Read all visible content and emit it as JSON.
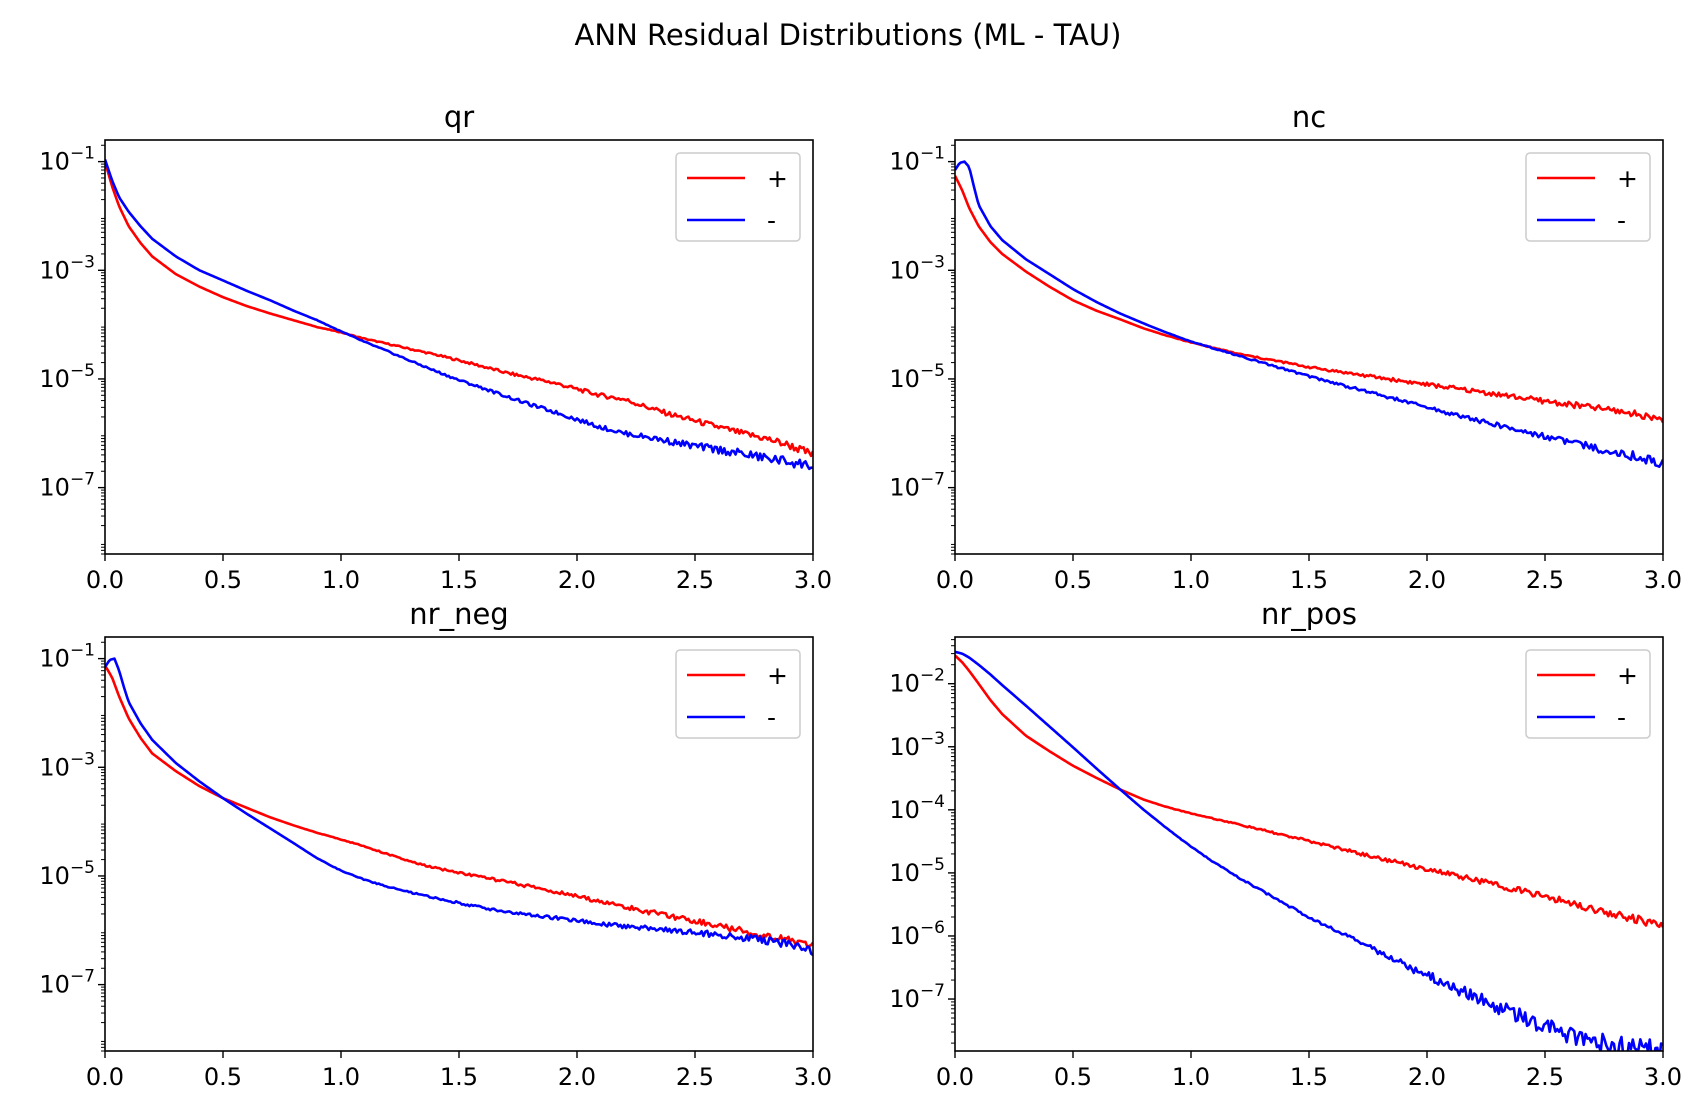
{
  "figure": {
    "suptitle": "ANN Residual Distributions (ML - TAU)"
  },
  "chart_data": [
    {
      "type": "line",
      "title": "qr",
      "xlabel": "",
      "ylabel": "",
      "xlim": [
        0,
        3
      ],
      "ylim": [
        6e-09,
        0.25
      ],
      "yscale": "log",
      "xticks": [
        "0.0",
        "0.5",
        "1.0",
        "1.5",
        "2.0",
        "2.5",
        "3.0"
      ],
      "yticks": [
        {
          "value": 0.1,
          "base": "10",
          "exp": "−1"
        },
        {
          "value": 0.001,
          "base": "10",
          "exp": "−3"
        },
        {
          "value": 1e-05,
          "base": "10",
          "exp": "−5"
        },
        {
          "value": 1e-07,
          "base": "10",
          "exp": "−7"
        }
      ],
      "legend_position": "top-right",
      "series": [
        {
          "name": "+",
          "color": "#ff0000",
          "x": [
            0,
            0.03,
            0.06,
            0.1,
            0.15,
            0.2,
            0.3,
            0.4,
            0.5,
            0.6,
            0.7,
            0.8,
            0.9,
            1.0,
            1.1,
            1.2,
            1.3,
            1.4,
            1.5,
            1.6,
            1.7,
            1.8,
            1.9,
            2.0,
            2.1,
            2.2,
            2.3,
            2.4,
            2.5,
            2.6,
            2.7,
            2.8,
            2.9,
            3.0
          ],
          "y": [
            0.1,
            0.035,
            0.015,
            0.0065,
            0.0032,
            0.0018,
            0.00085,
            0.0005,
            0.00032,
            0.00022,
            0.00016,
            0.00012,
            9e-05,
            7.2e-05,
            5.5e-05,
            4.4e-05,
            3.5e-05,
            2.8e-05,
            2.2e-05,
            1.7e-05,
            1.3e-05,
            1.05e-05,
            8.5e-06,
            6.5e-06,
            5e-06,
            4.2e-06,
            3e-06,
            2.2e-06,
            1.7e-06,
            1.3e-06,
            1e-06,
            8e-07,
            6e-07,
            4e-07
          ]
        },
        {
          "name": "-",
          "color": "#0000ff",
          "x": [
            0,
            0.03,
            0.06,
            0.1,
            0.15,
            0.2,
            0.3,
            0.4,
            0.5,
            0.6,
            0.7,
            0.8,
            0.9,
            1.0,
            1.1,
            1.2,
            1.3,
            1.4,
            1.5,
            1.6,
            1.7,
            1.8,
            1.9,
            2.0,
            2.1,
            2.2,
            2.3,
            2.4,
            2.5,
            2.6,
            2.7,
            2.8,
            2.9,
            3.0
          ],
          "y": [
            0.11,
            0.045,
            0.022,
            0.012,
            0.0065,
            0.0038,
            0.0018,
            0.001,
            0.00065,
            0.00042,
            0.00028,
            0.00018,
            0.00012,
            7.5e-05,
            4.8e-05,
            3.2e-05,
            2.1e-05,
            1.4e-05,
            9.5e-06,
            6.8e-06,
            4.8e-06,
            3.4e-06,
            2.5e-06,
            1.8e-06,
            1.3e-06,
            1e-06,
            8.5e-07,
            7e-07,
            5.8e-07,
            5e-07,
            4.2e-07,
            3.5e-07,
            3e-07,
            2.5e-07
          ]
        }
      ]
    },
    {
      "type": "line",
      "title": "nc",
      "xlabel": "",
      "ylabel": "",
      "xlim": [
        0,
        3
      ],
      "ylim": [
        6e-09,
        0.25
      ],
      "yscale": "log",
      "xticks": [
        "0.0",
        "0.5",
        "1.0",
        "1.5",
        "2.0",
        "2.5",
        "3.0"
      ],
      "yticks": [
        {
          "value": 0.1,
          "base": "10",
          "exp": "−1"
        },
        {
          "value": 0.001,
          "base": "10",
          "exp": "−3"
        },
        {
          "value": 1e-05,
          "base": "10",
          "exp": "−5"
        },
        {
          "value": 1e-07,
          "base": "10",
          "exp": "−7"
        }
      ],
      "legend_position": "top-right",
      "series": [
        {
          "name": "+",
          "color": "#ff0000",
          "x": [
            0,
            0.03,
            0.06,
            0.1,
            0.15,
            0.2,
            0.3,
            0.4,
            0.5,
            0.6,
            0.7,
            0.8,
            0.9,
            1.0,
            1.1,
            1.2,
            1.3,
            1.4,
            1.5,
            1.6,
            1.7,
            1.8,
            1.9,
            2.0,
            2.1,
            2.2,
            2.3,
            2.4,
            2.5,
            2.6,
            2.7,
            2.8,
            2.9,
            3.0
          ],
          "y": [
            0.055,
            0.03,
            0.014,
            0.0065,
            0.0033,
            0.002,
            0.00095,
            0.0005,
            0.00028,
            0.00018,
            0.000125,
            8.5e-05,
            6.2e-05,
            4.7e-05,
            3.7e-05,
            2.9e-05,
            2.4e-05,
            2e-05,
            1.65e-05,
            1.42e-05,
            1.22e-05,
            1.05e-05,
            9.1e-06,
            7.9e-06,
            6.9e-06,
            6e-06,
            5.2e-06,
            4.5e-06,
            3.9e-06,
            3.4e-06,
            3e-06,
            2.6e-06,
            2.2e-06,
            1.8e-06
          ]
        },
        {
          "name": "-",
          "color": "#0000ff",
          "x": [
            0,
            0.02,
            0.04,
            0.06,
            0.08,
            0.1,
            0.15,
            0.2,
            0.3,
            0.4,
            0.5,
            0.6,
            0.7,
            0.8,
            0.9,
            1.0,
            1.1,
            1.2,
            1.3,
            1.4,
            1.5,
            1.6,
            1.7,
            1.8,
            1.9,
            2.0,
            2.1,
            2.2,
            2.3,
            2.4,
            2.5,
            2.6,
            2.7,
            2.8,
            2.9,
            3.0
          ],
          "y": [
            0.07,
            0.095,
            0.1,
            0.08,
            0.035,
            0.016,
            0.0065,
            0.0036,
            0.0016,
            0.00085,
            0.00045,
            0.00026,
            0.00016,
            0.000105,
            7e-05,
            4.9e-05,
            3.6e-05,
            2.7e-05,
            2e-05,
            1.5e-05,
            1.12e-05,
            8.6e-06,
            6.6e-06,
            5.1e-06,
            3.9e-06,
            3e-06,
            2.3e-06,
            1.8e-06,
            1.4e-06,
            1.1e-06,
            8.8e-07,
            7e-07,
            5.5e-07,
            4.5e-07,
            3.6e-07,
            2.8e-07
          ]
        }
      ]
    },
    {
      "type": "line",
      "title": "nr_neg",
      "xlabel": "",
      "ylabel": "",
      "xlim": [
        0,
        3
      ],
      "ylim": [
        6e-09,
        0.25
      ],
      "yscale": "log",
      "xticks": [
        "0.0",
        "0.5",
        "1.0",
        "1.5",
        "2.0",
        "2.5",
        "3.0"
      ],
      "yticks": [
        {
          "value": 0.1,
          "base": "10",
          "exp": "−1"
        },
        {
          "value": 0.001,
          "base": "10",
          "exp": "−3"
        },
        {
          "value": 1e-05,
          "base": "10",
          "exp": "−5"
        },
        {
          "value": 1e-07,
          "base": "10",
          "exp": "−7"
        }
      ],
      "legend_position": "top-right",
      "series": [
        {
          "name": "+",
          "color": "#ff0000",
          "x": [
            0,
            0.03,
            0.06,
            0.1,
            0.15,
            0.2,
            0.3,
            0.4,
            0.5,
            0.6,
            0.7,
            0.8,
            0.9,
            1.0,
            1.1,
            1.2,
            1.3,
            1.4,
            1.5,
            1.6,
            1.7,
            1.8,
            1.9,
            2.0,
            2.1,
            2.2,
            2.3,
            2.4,
            2.5,
            2.6,
            2.7,
            2.8,
            2.9,
            3.0
          ],
          "y": [
            0.075,
            0.045,
            0.02,
            0.008,
            0.0035,
            0.0018,
            0.00085,
            0.00045,
            0.00027,
            0.00018,
            0.00012,
            8.5e-05,
            6.2e-05,
            4.7e-05,
            3.5e-05,
            2.5e-05,
            1.8e-05,
            1.4e-05,
            1.15e-05,
            9.5e-06,
            7.8e-06,
            6.4e-06,
            5.2e-06,
            4.2e-06,
            3.4e-06,
            2.7e-06,
            2.2e-06,
            1.8e-06,
            1.5e-06,
            1.2e-06,
            9.8e-07,
            8e-07,
            6.5e-07,
            5.2e-07
          ]
        },
        {
          "name": "-",
          "color": "#0000ff",
          "x": [
            0,
            0.02,
            0.04,
            0.06,
            0.08,
            0.1,
            0.15,
            0.2,
            0.3,
            0.4,
            0.5,
            0.6,
            0.7,
            0.8,
            0.9,
            1.0,
            1.1,
            1.2,
            1.3,
            1.4,
            1.5,
            1.6,
            1.7,
            1.8,
            1.9,
            2.0,
            2.1,
            2.2,
            2.3,
            2.4,
            2.5,
            2.6,
            2.7,
            2.8,
            2.9,
            3.0
          ],
          "y": [
            0.07,
            0.095,
            0.1,
            0.06,
            0.03,
            0.016,
            0.0065,
            0.0032,
            0.0012,
            0.00055,
            0.00027,
            0.00014,
            7.5e-05,
            4e-05,
            2.1e-05,
            1.25e-05,
            8.5e-06,
            6.3e-06,
            4.9e-06,
            3.9e-06,
            3.2e-06,
            2.6e-06,
            2.2e-06,
            1.9e-06,
            1.7e-06,
            1.5e-06,
            1.3e-06,
            1.2e-06,
            1.1e-06,
            1e-06,
            9.2e-07,
            8.3e-07,
            7.4e-07,
            6.5e-07,
            5.6e-07,
            4.2e-07
          ]
        }
      ]
    },
    {
      "type": "line",
      "title": "nr_pos",
      "xlabel": "",
      "ylabel": "",
      "xlim": [
        0,
        3
      ],
      "ylim": [
        1.5e-08,
        0.055
      ],
      "yscale": "log",
      "xticks": [
        "0.0",
        "0.5",
        "1.0",
        "1.5",
        "2.0",
        "2.5",
        "3.0"
      ],
      "yticks": [
        {
          "value": 0.01,
          "base": "10",
          "exp": "−2"
        },
        {
          "value": 0.001,
          "base": "10",
          "exp": "−3"
        },
        {
          "value": 0.0001,
          "base": "10",
          "exp": "−4"
        },
        {
          "value": 1e-05,
          "base": "10",
          "exp": "−5"
        },
        {
          "value": 1e-06,
          "base": "10",
          "exp": "−6"
        },
        {
          "value": 1e-07,
          "base": "10",
          "exp": "−7"
        }
      ],
      "legend_position": "top-right",
      "series": [
        {
          "name": "+",
          "color": "#ff0000",
          "x": [
            0,
            0.03,
            0.06,
            0.1,
            0.15,
            0.2,
            0.3,
            0.4,
            0.5,
            0.6,
            0.7,
            0.8,
            0.9,
            1.0,
            1.1,
            1.2,
            1.3,
            1.4,
            1.5,
            1.6,
            1.7,
            1.8,
            1.9,
            2.0,
            2.1,
            2.2,
            2.3,
            2.4,
            2.5,
            2.6,
            2.7,
            2.8,
            2.9,
            3.0
          ],
          "y": [
            0.028,
            0.022,
            0.016,
            0.01,
            0.0055,
            0.0033,
            0.0015,
            0.00085,
            0.0005,
            0.00032,
            0.00021,
            0.000145,
            0.00011,
            8.8e-05,
            7.2e-05,
            5.9e-05,
            4.8e-05,
            3.9e-05,
            3.2e-05,
            2.6e-05,
            2.1e-05,
            1.7e-05,
            1.4e-05,
            1.15e-05,
            9.5e-06,
            7.8e-06,
            6.4e-06,
            5.2e-06,
            4.2e-06,
            3.4e-06,
            2.7e-06,
            2.2e-06,
            1.8e-06,
            1.4e-06
          ]
        },
        {
          "name": "-",
          "color": "#0000ff",
          "x": [
            0,
            0.03,
            0.06,
            0.1,
            0.15,
            0.2,
            0.3,
            0.4,
            0.5,
            0.6,
            0.7,
            0.8,
            0.9,
            1.0,
            1.1,
            1.2,
            1.3,
            1.4,
            1.5,
            1.6,
            1.7,
            1.8,
            1.9,
            2.0,
            2.1,
            2.2,
            2.3,
            2.4,
            2.5,
            2.6,
            2.7,
            2.8,
            2.9,
            3.0
          ],
          "y": [
            0.032,
            0.03,
            0.026,
            0.02,
            0.014,
            0.0095,
            0.0045,
            0.0021,
            0.00098,
            0.00045,
            0.00021,
            0.0001,
            5e-05,
            2.6e-05,
            1.45e-05,
            8.5e-06,
            5.2e-06,
            3.2e-06,
            2e-06,
            1.3e-06,
            8.5e-07,
            5.5e-07,
            3.6e-07,
            2.4e-07,
            1.6e-07,
            1.1e-07,
            7.5e-08,
            5.2e-08,
            3.8e-08,
            2.8e-08,
            2.2e-08,
            1.8e-08,
            1.6e-08,
            1.5e-08
          ]
        }
      ]
    }
  ]
}
